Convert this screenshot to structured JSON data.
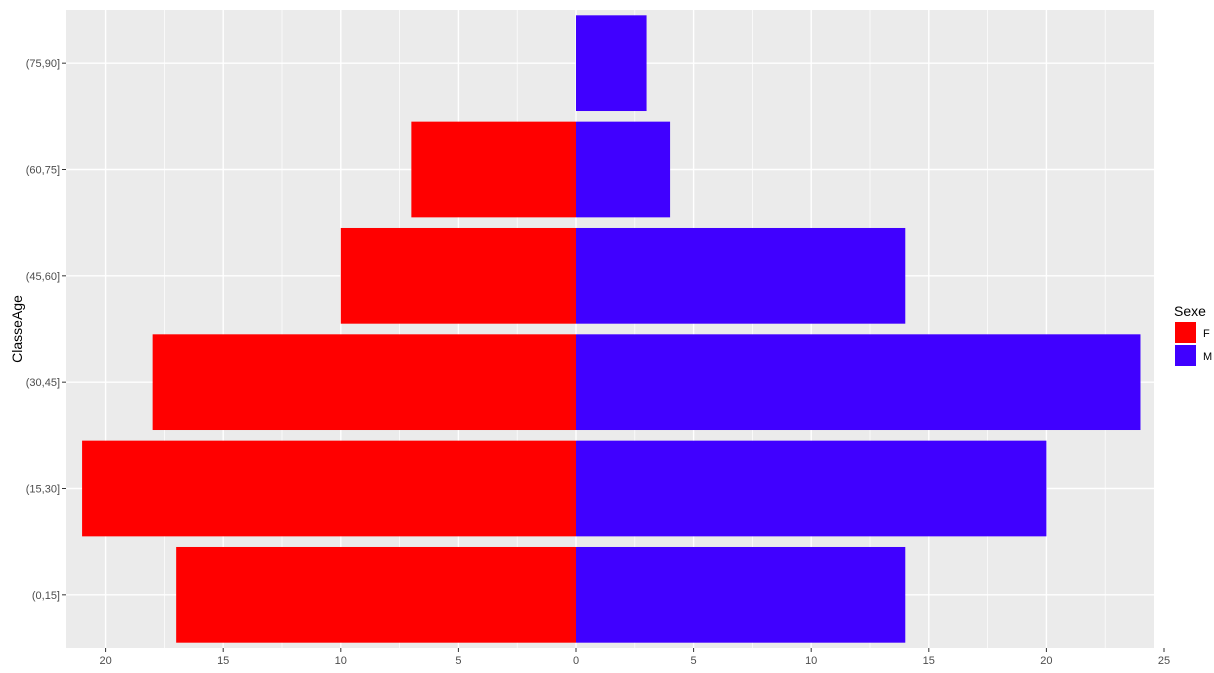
{
  "chart_data": {
    "type": "bar",
    "orientation": "horizontal",
    "title": "",
    "xlabel": "",
    "ylabel": "ClasseAge",
    "categories": [
      "(0,15]",
      "(15,30]",
      "(30,45]",
      "(45,60]",
      "(60,75]",
      "(75,90]"
    ],
    "series": [
      {
        "name": "F",
        "values": [
          17,
          21,
          18,
          10,
          7,
          0
        ],
        "color": "#ff0000",
        "direction": "left"
      },
      {
        "name": "M",
        "values": [
          14,
          20,
          24,
          14,
          4,
          3
        ],
        "color": "#4000ff",
        "direction": "right"
      }
    ],
    "x_ticks": [
      {
        "value": -20,
        "label": "20"
      },
      {
        "value": -15,
        "label": "15"
      },
      {
        "value": -10,
        "label": "10"
      },
      {
        "value": -5,
        "label": "5"
      },
      {
        "value": 0,
        "label": "0"
      },
      {
        "value": 5,
        "label": "5"
      },
      {
        "value": 10,
        "label": "10"
      },
      {
        "value": 15,
        "label": "15"
      },
      {
        "value": 20,
        "label": "20"
      },
      {
        "value": 25,
        "label": "25"
      }
    ],
    "xlim": [
      -21,
      25
    ],
    "grid": true,
    "panel_background": "#ebebeb",
    "grid_color": "#ffffff",
    "legend": {
      "title": "Sexe",
      "position": "right",
      "labels": [
        "F",
        "M"
      ]
    }
  }
}
